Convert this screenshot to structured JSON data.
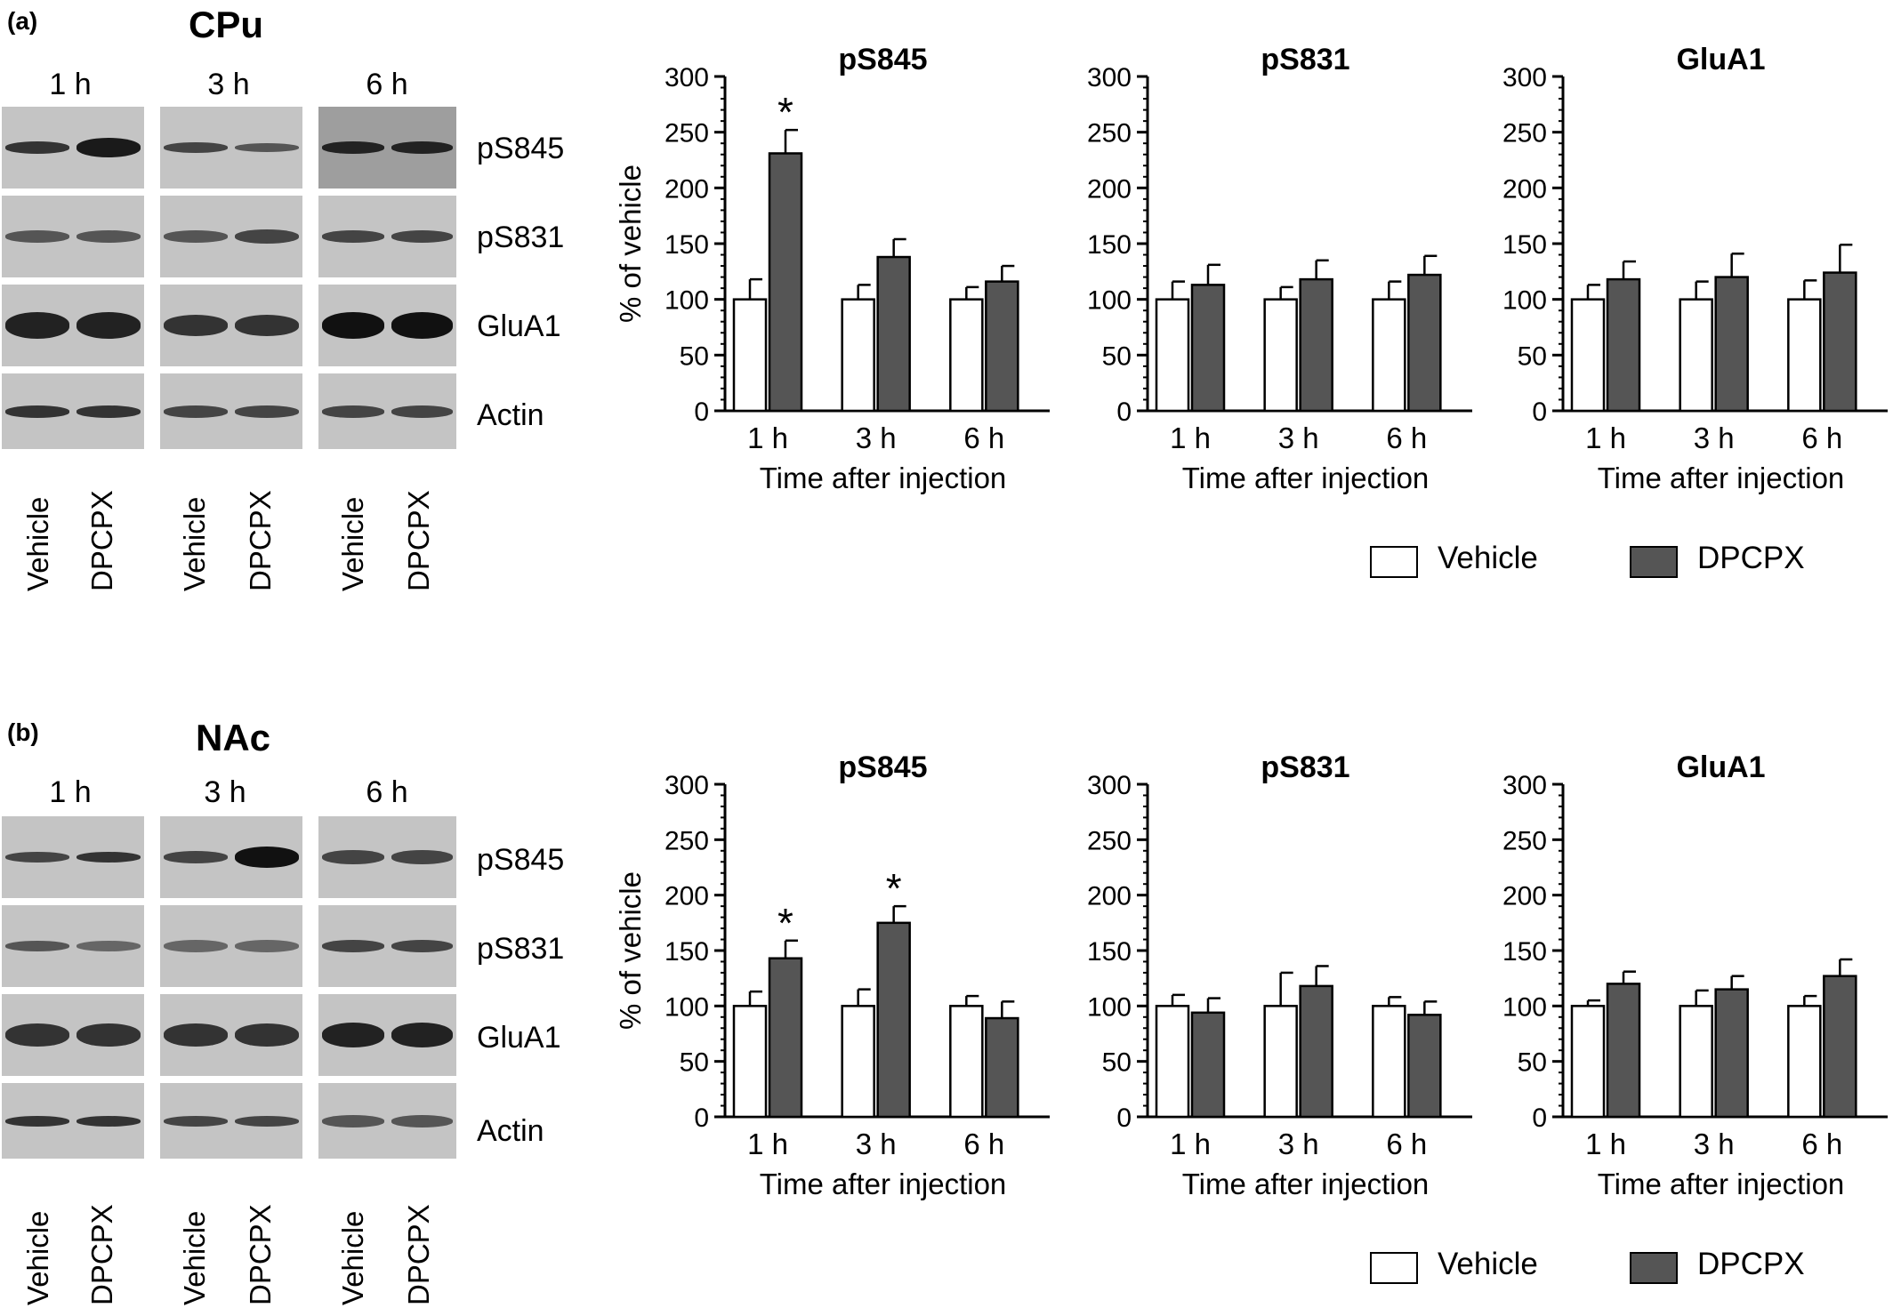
{
  "colors": {
    "vehicle": "#ffffff",
    "dpcpx": "#555555",
    "axis": "#000000"
  },
  "legend": {
    "vehicle_label": "Vehicle",
    "dpcpx_label": "DPCPX"
  },
  "western_blot_panels": [
    {
      "letter": "(a)",
      "region": "CPu",
      "time_labels": [
        "1 h",
        "3 h",
        "6 h"
      ],
      "protein_labels": [
        "pS845",
        "pS831",
        "GluA1",
        "Actin"
      ],
      "lane_labels": [
        "Vehicle",
        "DPCPX",
        "Vehicle",
        "DPCPX",
        "Vehicle",
        "DPCPX"
      ]
    },
    {
      "letter": "(b)",
      "region": "NAc",
      "time_labels": [
        "1 h",
        "3 h",
        "6 h"
      ],
      "protein_labels": [
        "pS845",
        "pS831",
        "GluA1",
        "Actin"
      ],
      "lane_labels": [
        "Vehicle",
        "DPCPX",
        "Vehicle",
        "DPCPX",
        "Vehicle",
        "DPCPX"
      ]
    }
  ],
  "chart_data": [
    {
      "type": "bar",
      "title": "pS845",
      "ylabel": "% of vehicle",
      "xlabel": "Time after injection",
      "categories": [
        "1 h",
        "3 h",
        "6 h"
      ],
      "ylim": [
        0,
        300
      ],
      "yticks": [
        0,
        50,
        100,
        150,
        200,
        250,
        300
      ],
      "series": [
        {
          "name": "Vehicle",
          "values": [
            100,
            100,
            100
          ],
          "errors": [
            18,
            13,
            11
          ]
        },
        {
          "name": "DPCPX",
          "values": [
            231,
            138,
            116
          ],
          "errors": [
            21,
            16,
            14
          ]
        }
      ],
      "annotations": [
        {
          "category": "1 h",
          "series": "DPCPX",
          "text": "*"
        }
      ]
    },
    {
      "type": "bar",
      "title": "pS831",
      "ylabel": "",
      "xlabel": "Time after injection",
      "categories": [
        "1 h",
        "3 h",
        "6 h"
      ],
      "ylim": [
        0,
        300
      ],
      "yticks": [
        0,
        50,
        100,
        150,
        200,
        250,
        300
      ],
      "series": [
        {
          "name": "Vehicle",
          "values": [
            100,
            100,
            100
          ],
          "errors": [
            16,
            11,
            16
          ]
        },
        {
          "name": "DPCPX",
          "values": [
            113,
            118,
            122
          ],
          "errors": [
            18,
            17,
            17
          ]
        }
      ],
      "annotations": []
    },
    {
      "type": "bar",
      "title": "GluA1",
      "ylabel": "",
      "xlabel": "Time after injection",
      "categories": [
        "1 h",
        "3 h",
        "6 h"
      ],
      "ylim": [
        0,
        300
      ],
      "yticks": [
        0,
        50,
        100,
        150,
        200,
        250,
        300
      ],
      "series": [
        {
          "name": "Vehicle",
          "values": [
            100,
            100,
            100
          ],
          "errors": [
            13,
            16,
            17
          ]
        },
        {
          "name": "DPCPX",
          "values": [
            118,
            120,
            124
          ],
          "errors": [
            16,
            21,
            25
          ]
        }
      ],
      "annotations": []
    },
    {
      "type": "bar",
      "title": "pS845",
      "ylabel": "% of vehicle",
      "xlabel": "Time after injection",
      "categories": [
        "1 h",
        "3 h",
        "6 h"
      ],
      "ylim": [
        0,
        300
      ],
      "yticks": [
        0,
        50,
        100,
        150,
        200,
        250,
        300
      ],
      "series": [
        {
          "name": "Vehicle",
          "values": [
            100,
            100,
            100
          ],
          "errors": [
            13,
            15,
            9
          ]
        },
        {
          "name": "DPCPX",
          "values": [
            143,
            175,
            89
          ],
          "errors": [
            16,
            15,
            15
          ]
        }
      ],
      "annotations": [
        {
          "category": "1 h",
          "series": "DPCPX",
          "text": "*"
        },
        {
          "category": "3 h",
          "series": "DPCPX",
          "text": "*"
        }
      ]
    },
    {
      "type": "bar",
      "title": "pS831",
      "ylabel": "",
      "xlabel": "Time after injection",
      "categories": [
        "1 h",
        "3 h",
        "6 h"
      ],
      "ylim": [
        0,
        300
      ],
      "yticks": [
        0,
        50,
        100,
        150,
        200,
        250,
        300
      ],
      "series": [
        {
          "name": "Vehicle",
          "values": [
            100,
            100,
            100
          ],
          "errors": [
            10,
            30,
            8
          ]
        },
        {
          "name": "DPCPX",
          "values": [
            94,
            118,
            92
          ],
          "errors": [
            13,
            18,
            12
          ]
        }
      ],
      "annotations": []
    },
    {
      "type": "bar",
      "title": "GluA1",
      "ylabel": "",
      "xlabel": "Time after injection",
      "categories": [
        "1 h",
        "3 h",
        "6 h"
      ],
      "ylim": [
        0,
        300
      ],
      "yticks": [
        0,
        50,
        100,
        150,
        200,
        250,
        300
      ],
      "series": [
        {
          "name": "Vehicle",
          "values": [
            100,
            100,
            100
          ],
          "errors": [
            5,
            14,
            9
          ]
        },
        {
          "name": "DPCPX",
          "values": [
            120,
            115,
            127
          ],
          "errors": [
            11,
            12,
            15
          ]
        }
      ],
      "annotations": []
    }
  ]
}
